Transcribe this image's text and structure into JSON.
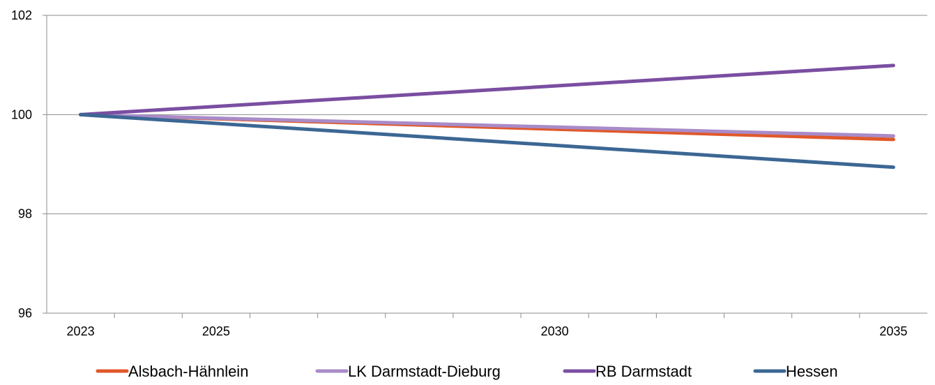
{
  "chart_data": {
    "type": "line",
    "title": "",
    "xlabel": "",
    "ylabel": "",
    "x": [
      2023,
      2035
    ],
    "x_tick_labels": [
      "2023",
      "2025",
      "2030",
      "2035"
    ],
    "y_tick_labels": [
      "96",
      "98",
      "100",
      "102"
    ],
    "ylim": [
      96,
      102
    ],
    "xlim": [
      2022.5,
      2035.5
    ],
    "grid": "horizontal",
    "legend_position": "bottom",
    "series": [
      {
        "name": "Alsbach-Hähnlein",
        "color": "#e0582a",
        "values": [
          100,
          99.5
        ]
      },
      {
        "name": "LK Darmstadt-Dieburg",
        "color": "#a98bc8",
        "values": [
          100,
          99.57
        ]
      },
      {
        "name": "RB Darmstadt",
        "color": "#7a4ea1",
        "values": [
          100,
          100.99
        ]
      },
      {
        "name": "Hessen",
        "color": "#3c6794",
        "values": [
          100,
          98.94
        ]
      }
    ]
  }
}
